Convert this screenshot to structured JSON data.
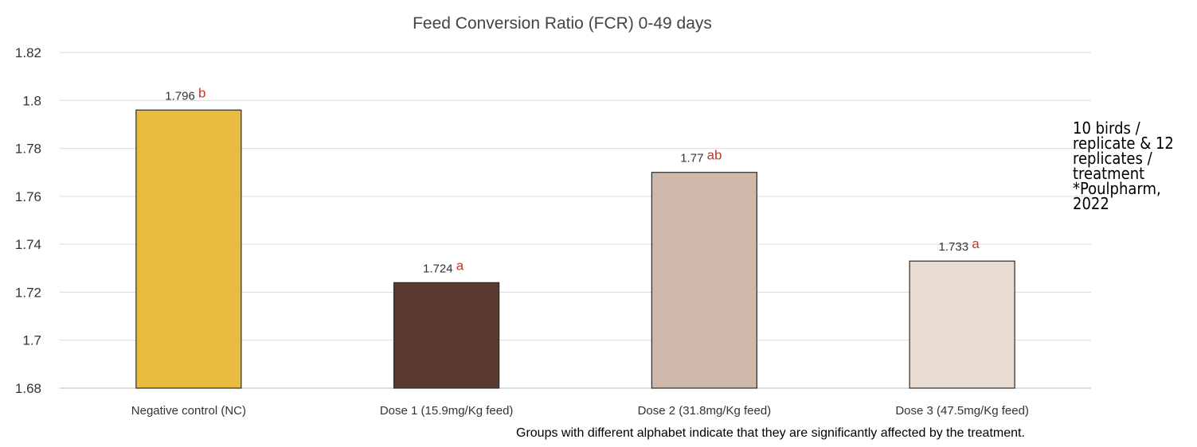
{
  "chart_data": {
    "type": "bar",
    "title": "Feed Conversion Ratio (FCR) 0-49 days",
    "xlabel": "",
    "ylabel": "",
    "categories": [
      "Negative control  (NC)",
      "Dose 1 (15.9mg/Kg feed)",
      "Dose 2 (31.8mg/Kg feed)",
      "Dose 3 (47.5mg/Kg feed)"
    ],
    "values": [
      1.796,
      1.724,
      1.77,
      1.733
    ],
    "value_labels": [
      "1.796",
      "1.724",
      "1.77",
      "1.733"
    ],
    "significance_letters": [
      "b",
      "a",
      "ab",
      "a"
    ],
    "bar_colors": [
      "#e8bc3f",
      "#5a3a2e",
      "#cdb8aa",
      "#e7dbd2"
    ],
    "letter_color": "#c0392b",
    "ylim": [
      1.68,
      1.82
    ],
    "yticks": [
      "1.68",
      "1.7",
      "1.72",
      "1.74",
      "1.76",
      "1.78",
      "1.8",
      "1.82"
    ],
    "grid": true,
    "legend": "none"
  },
  "side_note": [
    "10 birds /",
    "replicate & 12",
    "replicates /",
    "treatment",
    "*Poulpharm,",
    "2022"
  ],
  "footnote": "Groups with different alphabet indicate that they are significantly affected by the treatment."
}
